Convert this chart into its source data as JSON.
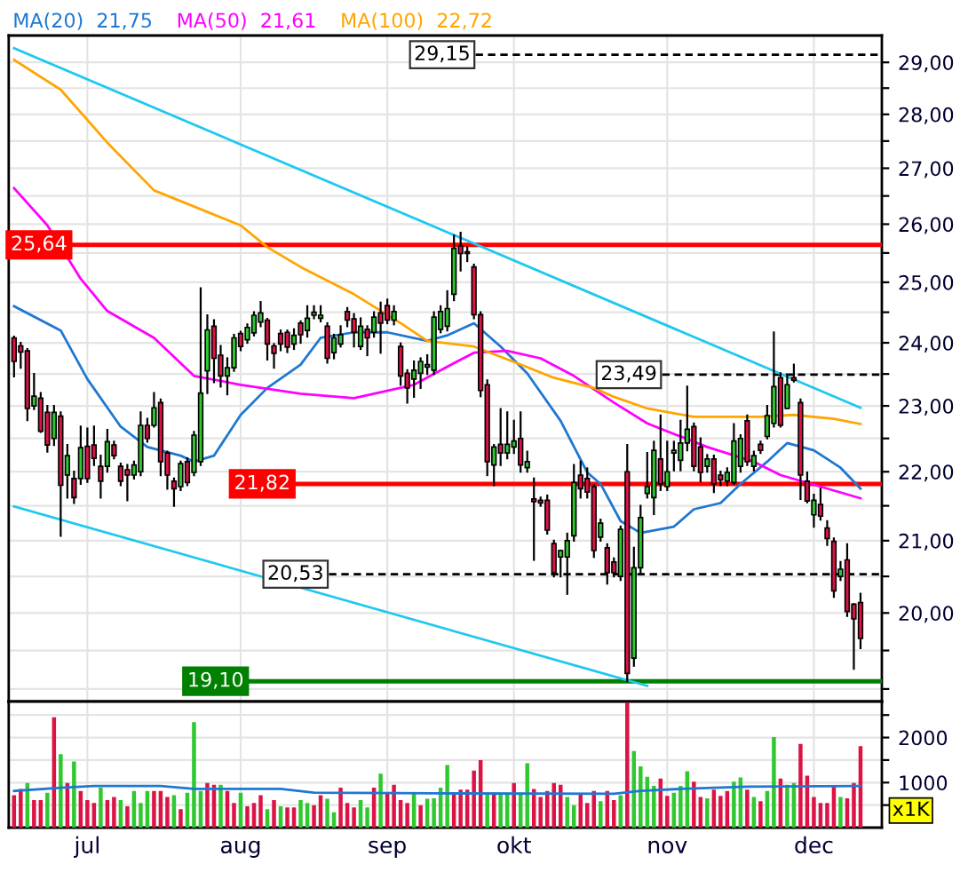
{
  "chart_data": [
    {
      "type": "candlestick",
      "categories": [
        null,
        null,
        null,
        null,
        null,
        null,
        null,
        null,
        null,
        null,
        null,
        null,
        null,
        null,
        null,
        null,
        null,
        null,
        null,
        null,
        null,
        null,
        null,
        null,
        null,
        null,
        null,
        null,
        null,
        null,
        null,
        null,
        null,
        null,
        null,
        null,
        null,
        null,
        null,
        null,
        null,
        null,
        null,
        null,
        null,
        null,
        null,
        null,
        null,
        null,
        null,
        null,
        null,
        null,
        null,
        null,
        null,
        null,
        null,
        null,
        null,
        null,
        null,
        null,
        null,
        null,
        null,
        null,
        null,
        null,
        null,
        null,
        null,
        null,
        null,
        null,
        null,
        null,
        null,
        null,
        null,
        null,
        null,
        null,
        null,
        null,
        null,
        null,
        null,
        null,
        null,
        null,
        null,
        null,
        null,
        null,
        null,
        null,
        null,
        null,
        null,
        null,
        null,
        null,
        null,
        null,
        null,
        null,
        null,
        null,
        null,
        null,
        null,
        null,
        null,
        null,
        null,
        null,
        null,
        null,
        null,
        null,
        null,
        null,
        null,
        null,
        null,
        null
      ],
      "ohlc": [
        [
          24.08,
          24.1,
          23.46,
          23.7
        ],
        [
          23.95,
          24.0,
          23.6,
          23.85
        ],
        [
          23.87,
          23.9,
          22.78,
          22.96
        ],
        [
          23.0,
          23.5,
          22.95,
          23.15
        ],
        [
          23.12,
          23.2,
          22.6,
          22.61
        ],
        [
          22.9,
          23.0,
          22.3,
          22.4
        ],
        [
          22.5,
          23.0,
          22.4,
          22.9
        ],
        [
          22.84,
          22.9,
          21.07,
          21.8
        ],
        [
          21.95,
          22.4,
          21.62,
          22.24
        ],
        [
          21.9,
          22.0,
          21.54,
          21.62
        ],
        [
          21.9,
          22.68,
          21.82,
          22.36
        ],
        [
          22.38,
          22.65,
          21.85,
          21.9
        ],
        [
          22.4,
          22.68,
          22.1,
          22.2
        ],
        [
          22.08,
          22.24,
          21.62,
          21.86
        ],
        [
          22.08,
          22.63,
          22.0,
          22.45
        ],
        [
          22.4,
          22.45,
          22.2,
          22.24
        ],
        [
          22.08,
          22.12,
          21.8,
          21.86
        ],
        [
          22.03,
          22.1,
          21.58,
          21.95
        ],
        [
          21.95,
          22.15,
          21.9,
          22.1
        ],
        [
          22.0,
          22.9,
          21.95,
          22.7
        ],
        [
          22.7,
          22.8,
          22.45,
          22.5
        ],
        [
          22.7,
          23.2,
          22.68,
          22.97
        ],
        [
          23.05,
          23.1,
          21.95,
          22.15
        ],
        [
          22.28,
          22.3,
          21.75,
          21.95
        ],
        [
          21.86,
          21.9,
          21.5,
          21.75
        ],
        [
          21.78,
          22.15,
          21.73,
          22.12
        ],
        [
          22.15,
          22.2,
          21.8,
          21.84
        ],
        [
          21.99,
          22.6,
          21.95,
          22.55
        ],
        [
          22.15,
          24.9,
          22.1,
          23.2
        ],
        [
          23.55,
          24.45,
          23.2,
          24.21
        ],
        [
          24.27,
          24.37,
          23.37,
          23.75
        ],
        [
          23.8,
          23.95,
          23.3,
          23.47
        ],
        [
          23.47,
          23.75,
          23.18,
          23.6
        ],
        [
          23.6,
          24.13,
          23.55,
          24.08
        ],
        [
          24.15,
          24.18,
          23.88,
          23.94
        ],
        [
          24.05,
          24.3,
          24.0,
          24.25
        ],
        [
          24.16,
          24.5,
          24.12,
          24.45
        ],
        [
          24.34,
          24.67,
          24.27,
          24.49
        ],
        [
          24.37,
          24.39,
          23.73,
          23.98
        ],
        [
          23.95,
          23.98,
          23.6,
          23.83
        ],
        [
          24.15,
          24.2,
          23.88,
          23.98
        ],
        [
          24.17,
          24.2,
          23.85,
          23.93
        ],
        [
          23.98,
          24.22,
          23.9,
          24.12
        ],
        [
          24.32,
          24.35,
          24.0,
          24.13
        ],
        [
          24.2,
          24.6,
          24.1,
          24.4
        ],
        [
          24.45,
          24.6,
          24.4,
          24.5
        ],
        [
          24.4,
          24.6,
          24.35,
          24.45
        ],
        [
          24.27,
          24.32,
          23.68,
          23.75
        ],
        [
          23.84,
          24.13,
          23.75,
          24.08
        ],
        [
          23.98,
          24.27,
          23.94,
          24.13
        ],
        [
          24.51,
          24.57,
          24.27,
          24.37
        ],
        [
          24.39,
          24.47,
          23.94,
          24.17
        ],
        [
          23.94,
          24.4,
          23.9,
          24.27
        ],
        [
          24.22,
          24.27,
          23.8,
          24.08
        ],
        [
          24.17,
          24.5,
          24.1,
          24.42
        ],
        [
          24.49,
          24.66,
          23.84,
          24.32
        ],
        [
          24.61,
          24.71,
          24.32,
          24.37
        ],
        [
          24.37,
          24.6,
          24.3,
          24.51
        ],
        [
          23.94,
          23.99,
          23.33,
          23.47
        ],
        [
          23.51,
          23.56,
          23.05,
          23.28
        ],
        [
          23.42,
          23.7,
          23.14,
          23.56
        ],
        [
          23.51,
          23.75,
          23.28,
          23.7
        ],
        [
          23.61,
          23.8,
          23.5,
          23.65
        ],
        [
          23.56,
          24.5,
          23.5,
          24.42
        ],
        [
          24.22,
          24.6,
          24.17,
          24.51
        ],
        [
          24.27,
          24.85,
          24.2,
          24.56
        ],
        [
          24.8,
          25.8,
          24.7,
          25.58
        ],
        [
          25.62,
          25.85,
          25.2,
          25.49
        ],
        [
          25.52,
          25.6,
          25.36,
          25.49
        ],
        [
          25.26,
          25.3,
          24.4,
          24.46
        ],
        [
          24.46,
          24.5,
          23.15,
          23.24
        ],
        [
          23.33,
          23.4,
          21.95,
          22.15
        ],
        [
          22.1,
          22.4,
          21.8,
          22.37
        ],
        [
          22.41,
          22.95,
          22.1,
          22.28
        ],
        [
          22.28,
          22.9,
          22.2,
          22.41
        ],
        [
          22.37,
          22.77,
          22.28,
          22.46
        ],
        [
          22.5,
          22.9,
          22.0,
          22.1
        ],
        [
          22.06,
          22.3,
          22.0,
          22.15
        ],
        [
          21.6,
          21.9,
          20.73,
          21.56
        ],
        [
          21.58,
          21.62,
          21.5,
          21.54
        ],
        [
          21.58,
          21.65,
          21.1,
          21.15
        ],
        [
          20.96,
          21.0,
          20.5,
          20.55
        ],
        [
          20.77,
          20.86,
          20.5,
          20.86
        ],
        [
          20.77,
          21.1,
          20.26,
          21.0
        ],
        [
          21.07,
          22.1,
          21.0,
          21.84
        ],
        [
          21.95,
          22.15,
          21.62,
          21.75
        ],
        [
          21.9,
          22.05,
          21.62,
          21.7
        ],
        [
          21.78,
          21.8,
          20.77,
          20.86
        ],
        [
          21.05,
          21.3,
          21.0,
          21.25
        ],
        [
          20.9,
          20.95,
          20.4,
          20.55
        ],
        [
          20.7,
          20.75,
          20.5,
          20.55
        ],
        [
          20.5,
          21.2,
          20.45,
          21.16
        ],
        [
          22.0,
          22.4,
          19.1,
          19.2
        ],
        [
          19.4,
          20.9,
          19.3,
          20.62
        ],
        [
          20.62,
          21.5,
          20.55,
          21.33
        ],
        [
          21.68,
          22.28,
          21.62,
          21.78
        ],
        [
          21.62,
          22.45,
          21.38,
          22.32
        ],
        [
          22.19,
          22.85,
          21.73,
          21.82
        ],
        [
          21.78,
          22.45,
          21.73,
          22.0
        ],
        [
          22.28,
          22.45,
          22.02,
          22.32
        ],
        [
          22.17,
          22.77,
          22.02,
          22.43
        ],
        [
          22.43,
          23.3,
          22.32,
          22.64
        ],
        [
          22.68,
          22.73,
          22.02,
          22.08
        ],
        [
          22.37,
          22.5,
          21.86,
          21.99
        ],
        [
          22.08,
          22.25,
          22.0,
          22.19
        ],
        [
          22.19,
          22.24,
          21.7,
          21.82
        ],
        [
          21.95,
          22.0,
          21.8,
          21.88
        ],
        [
          21.86,
          22.05,
          21.8,
          21.99
        ],
        [
          21.84,
          22.72,
          21.82,
          22.46
        ],
        [
          22.08,
          22.55,
          22.0,
          22.5
        ],
        [
          22.77,
          22.85,
          22.1,
          22.15
        ],
        [
          22.08,
          22.3,
          22.02,
          22.24
        ],
        [
          22.41,
          22.45,
          22.28,
          22.32
        ],
        [
          22.53,
          23.0,
          22.5,
          22.85
        ],
        [
          22.73,
          24.17,
          22.68,
          23.3
        ],
        [
          23.44,
          23.51,
          22.68,
          22.7
        ],
        [
          22.96,
          23.47,
          22.96,
          23.33
        ],
        [
          23.44,
          23.65,
          23.38,
          23.4
        ],
        [
          23.05,
          23.1,
          21.6,
          21.95
        ],
        [
          21.86,
          21.99,
          21.55,
          21.57
        ],
        [
          21.37,
          21.66,
          21.2,
          21.58
        ],
        [
          21.52,
          21.75,
          21.3,
          21.35
        ],
        [
          21.18,
          21.28,
          20.94,
          21.03
        ],
        [
          20.99,
          21.03,
          20.22,
          20.3
        ],
        [
          20.5,
          20.7,
          20.45,
          20.6
        ],
        [
          20.73,
          20.95,
          19.96,
          20.02
        ],
        [
          20.12,
          20.12,
          19.26,
          19.92
        ],
        [
          20.14,
          20.26,
          19.53,
          19.66
        ]
      ],
      "colors": [
        "#dc1446",
        "#dc1446",
        "#dc1446",
        "#2fc82f",
        "#dc1446",
        "#dc1446",
        "#2fc82f",
        "#dc1446",
        "#2fc82f",
        "#dc1446",
        "#2fc82f",
        "#dc1446",
        "#dc1446",
        "#dc1446",
        "#2fc82f",
        "#dc1446",
        "#dc1446",
        "#dc1446",
        "#2fc82f",
        "#2fc82f",
        "#dc1446",
        "#2fc82f",
        "#dc1446",
        "#dc1446",
        "#dc1446",
        "#2fc82f",
        "#dc1446",
        "#2fc82f",
        "#2fc82f",
        "#2fc82f",
        "#dc1446",
        "#dc1446",
        "#2fc82f",
        "#2fc82f",
        "#dc1446",
        "#2fc82f",
        "#2fc82f",
        "#2fc82f",
        "#dc1446",
        "#dc1446",
        "#dc1446",
        "#dc1446",
        "#2fc82f",
        "#dc1446",
        "#2fc82f",
        "#2fc82f",
        "#2fc82f",
        "#dc1446",
        "#2fc82f",
        "#2fc82f",
        "#dc1446",
        "#dc1446",
        "#2fc82f",
        "#dc1446",
        "#2fc82f",
        "#dc1446",
        "#dc1446",
        "#2fc82f",
        "#dc1446",
        "#dc1446",
        "#2fc82f",
        "#2fc82f",
        "#2fc82f",
        "#2fc82f",
        "#2fc82f",
        "#2fc82f",
        "#2fc82f",
        "#dc1446",
        "#dc1446",
        "#dc1446",
        "#dc1446",
        "#dc1446",
        "#2fc82f",
        "#dc1446",
        "#2fc82f",
        "#2fc82f",
        "#dc1446",
        "#2fc82f",
        "#dc1446",
        "#dc1446",
        "#dc1446",
        "#dc1446",
        "#2fc82f",
        "#2fc82f",
        "#2fc82f",
        "#dc1446",
        "#dc1446",
        "#dc1446",
        "#2fc82f",
        "#dc1446",
        "#dc1446",
        "#2fc82f",
        "#dc1446",
        "#2fc82f",
        "#2fc82f",
        "#2fc82f",
        "#2fc82f",
        "#dc1446",
        "#2fc82f",
        "#2fc82f",
        "#2fc82f",
        "#2fc82f",
        "#dc1446",
        "#dc1446",
        "#2fc82f",
        "#dc1446",
        "#dc1446",
        "#2fc82f",
        "#2fc82f",
        "#2fc82f",
        "#dc1446",
        "#2fc82f",
        "#dc1446",
        "#2fc82f",
        "#2fc82f",
        "#dc1446",
        "#2fc82f",
        "#dc1446",
        "#dc1446",
        "#dc1446",
        "#2fc82f",
        "#dc1446",
        "#dc1446",
        "#dc1446",
        "#2fc82f",
        "#dc1446",
        "#dc1446",
        "#dc1446"
      ],
      "series": [
        {
          "name": "MA(20)  21,75",
          "type": "line",
          "color": "#1e78d2",
          "values": [
            24.6,
            null,
            null,
            null,
            null,
            null,
            null,
            24.2,
            null,
            null,
            null,
            23.42,
            null,
            null,
            null,
            null,
            22.68,
            null,
            null,
            null,
            22.37,
            null,
            null,
            null,
            null,
            22.24,
            null,
            22.15,
            null,
            null,
            22.24,
            null,
            null,
            null,
            22.86,
            null,
            null,
            null,
            23.28,
            null,
            null,
            null,
            null,
            23.65,
            null,
            null,
            24.08,
            null,
            null,
            null,
            null,
            24.17,
            null,
            null,
            null,
            null,
            24.17,
            null,
            null,
            null,
            null,
            null,
            24.03,
            null,
            null,
            24.12,
            null,
            null,
            null,
            24.32,
            null,
            null,
            null,
            23.94,
            null,
            null,
            null,
            23.51,
            null,
            null,
            null,
            null,
            22.77,
            null,
            null,
            null,
            21.99,
            null,
            21.82,
            null,
            null,
            21.28,
            null,
            null,
            21.11,
            null,
            null,
            null,
            null,
            21.2,
            null,
            null,
            21.45,
            null,
            null,
            null,
            21.54,
            null,
            null,
            21.82,
            null,
            null,
            null,
            22.15,
            null,
            null,
            22.43,
            null,
            null,
            null,
            22.32,
            null,
            null,
            null,
            22.06,
            null,
            null,
            21.75
          ]
        },
        {
          "name": "MA(50)  21,61",
          "type": "line",
          "color": "#ff00ff",
          "values": [
            26.64,
            null,
            null,
            null,
            null,
            25.98,
            null,
            null,
            null,
            null,
            25.06,
            null,
            null,
            null,
            24.52,
            null,
            null,
            null,
            null,
            null,
            null,
            24.08,
            null,
            null,
            null,
            null,
            null,
            23.47,
            null,
            null,
            null,
            null,
            null,
            null,
            23.33,
            null,
            null,
            null,
            null,
            null,
            null,
            null,
            null,
            23.19,
            null,
            null,
            null,
            null,
            null,
            null,
            null,
            23.12,
            null,
            null,
            null,
            null,
            null,
            null,
            null,
            null,
            23.33,
            null,
            null,
            null,
            23.56,
            null,
            null,
            null,
            null,
            23.84,
            null,
            null,
            null,
            null,
            23.87,
            null,
            null,
            null,
            null,
            23.75,
            null,
            null,
            null,
            null,
            23.47,
            null,
            null,
            null,
            null,
            null,
            23.05,
            null,
            null,
            null,
            null,
            22.73,
            null,
            null,
            null,
            null,
            null,
            null,
            null,
            null,
            22.37,
            null,
            null,
            null,
            null,
            null,
            null,
            22.15,
            null,
            null,
            null,
            21.95,
            null,
            null,
            null,
            null,
            null,
            21.78,
            null,
            null,
            null,
            null,
            null,
            21.61
          ]
        },
        {
          "name": "MA(100)  22,72",
          "type": "line",
          "color": "#ffa500",
          "values": [
            29.05,
            null,
            null,
            null,
            null,
            null,
            null,
            28.47,
            null,
            null,
            null,
            null,
            null,
            null,
            27.47,
            null,
            null,
            null,
            null,
            null,
            null,
            26.6,
            null,
            null,
            null,
            null,
            null,
            null,
            null,
            null,
            null,
            null,
            null,
            null,
            25.98,
            null,
            null,
            null,
            25.6,
            null,
            null,
            null,
            null,
            25.26,
            null,
            null,
            null,
            null,
            null,
            null,
            null,
            24.8,
            null,
            null,
            null,
            null,
            null,
            null,
            24.32,
            null,
            null,
            null,
            24.03,
            null,
            null,
            null,
            null,
            null,
            null,
            23.94,
            null,
            null,
            null,
            null,
            null,
            null,
            23.65,
            null,
            null,
            null,
            null,
            23.44,
            null,
            null,
            null,
            null,
            null,
            23.28,
            null,
            null,
            23.14,
            null,
            null,
            null,
            null,
            22.96,
            null,
            null,
            null,
            null,
            null,
            null,
            22.83,
            null,
            null,
            null,
            null,
            null,
            null,
            null,
            null,
            null,
            22.83,
            null,
            null,
            null,
            null,
            22.86,
            null,
            null,
            null,
            null,
            null,
            22.8,
            null,
            null,
            null,
            22.72
          ]
        },
        {
          "type": "line",
          "color": "#1ec8f0",
          "values": [
            29.28,
            null,
            null,
            null,
            null,
            null,
            null,
            null,
            null,
            null,
            null,
            null,
            null,
            null,
            null,
            null,
            null,
            null,
            null,
            null,
            null,
            null,
            null,
            null,
            null,
            null,
            null,
            null,
            null,
            null,
            null,
            null,
            null,
            null,
            null,
            null,
            null,
            null,
            null,
            null,
            null,
            null,
            null,
            null,
            null,
            null,
            null,
            null,
            null,
            null,
            null,
            null,
            null,
            null,
            null,
            null,
            null,
            null,
            null,
            null,
            null,
            null,
            null,
            null,
            null,
            null,
            null,
            null,
            null,
            null,
            null,
            null,
            null,
            null,
            null,
            null,
            null,
            null,
            null,
            null,
            null,
            null,
            null,
            null,
            null,
            null,
            null,
            null,
            null,
            null,
            null,
            null,
            null,
            null,
            null,
            null,
            null,
            null,
            null,
            null,
            null,
            null,
            null,
            null,
            null,
            null,
            null,
            null,
            null,
            null,
            null,
            null,
            null,
            null,
            null,
            null,
            null,
            null,
            null,
            null,
            null,
            null,
            null,
            null,
            null,
            null,
            null,
            22.97
          ]
        },
        {
          "type": "line",
          "color": "#1ec8f0",
          "values": [
            21.49,
            null,
            null,
            null,
            null,
            null,
            null,
            null,
            null,
            null,
            null,
            null,
            null,
            null,
            null,
            null,
            null,
            null,
            null,
            null,
            null,
            null,
            null,
            null,
            null,
            null,
            null,
            null,
            null,
            null,
            null,
            null,
            null,
            null,
            null,
            null,
            null,
            null,
            null,
            null,
            null,
            null,
            null,
            null,
            null,
            null,
            null,
            null,
            null,
            null,
            null,
            null,
            null,
            null,
            null,
            null,
            null,
            null,
            null,
            null,
            null,
            null,
            null,
            null,
            null,
            null,
            null,
            null,
            null,
            null,
            null,
            null,
            null,
            null,
            null,
            null,
            null,
            null,
            null,
            null,
            null,
            null,
            null,
            null,
            null,
            null,
            null,
            null,
            null,
            null,
            null,
            null,
            null,
            null,
            null,
            19.04,
            null,
            null,
            null,
            null,
            null,
            null,
            null,
            null,
            null,
            null,
            null,
            null,
            null,
            null,
            null,
            null,
            null,
            null,
            null,
            null,
            null,
            null,
            null,
            null,
            null,
            null,
            null,
            null,
            null,
            null,
            null,
            null
          ]
        }
      ],
      "ref_lines": [
        {
          "axis": "y",
          "value": 29.15,
          "label": "29,15",
          "color": "#000000",
          "line_style": "dashed"
        },
        {
          "axis": "y",
          "value": 25.64,
          "label": "25,64",
          "color": "#ff0000",
          "line_style": "solid"
        },
        {
          "axis": "y",
          "value": 23.49,
          "label": "23,49",
          "color": "#000000",
          "line_style": "dashed"
        },
        {
          "axis": "y",
          "value": 21.82,
          "label": "21,82",
          "color": "#ff0000",
          "line_style": "solid"
        },
        {
          "axis": "y",
          "value": 20.53,
          "label": "20,53",
          "color": "#000000",
          "line_style": "dashed"
        },
        {
          "axis": "y",
          "value": 19.1,
          "label": "19,10",
          "color": "#008000",
          "line_style": "solid"
        }
      ],
      "log": true,
      "ylim": [
        18.84,
        29.53
      ],
      "yticks": [
        {
          "value": 19,
          "label": null
        },
        {
          "value": 19.5,
          "label": null
        },
        {
          "value": 20,
          "label": "20,00"
        },
        {
          "value": 20.5,
          "label": null
        },
        {
          "value": 21,
          "label": "21,00"
        },
        {
          "value": 21.5,
          "label": null
        },
        {
          "value": 22,
          "label": "22,00"
        },
        {
          "value": 22.5,
          "label": null
        },
        {
          "value": 23,
          "label": "23,00"
        },
        {
          "value": 23.5,
          "label": null
        },
        {
          "value": 24,
          "label": "24,00"
        },
        {
          "value": 24.5,
          "label": null
        },
        {
          "value": 25,
          "label": "25,00"
        },
        {
          "value": 25.5,
          "label": null
        },
        {
          "value": 26,
          "label": "26,00"
        },
        {
          "value": 26.5,
          "label": null
        },
        {
          "value": 27,
          "label": "27,00"
        },
        {
          "value": 27.5,
          "label": null
        },
        {
          "value": 28,
          "label": "28,00"
        },
        {
          "value": 28.5,
          "label": null
        },
        {
          "value": 29,
          "label": "29,00"
        }
      ],
      "grid": true,
      "legend": "top left",
      "tick_labels": "y"
    },
    {
      "type": "bar",
      "categories": [
        null,
        null,
        null,
        null,
        null,
        null,
        null,
        null,
        null,
        null,
        null,
        "jul",
        null,
        null,
        null,
        null,
        null,
        null,
        null,
        null,
        null,
        null,
        null,
        null,
        null,
        null,
        null,
        null,
        null,
        null,
        null,
        null,
        null,
        null,
        "aug",
        null,
        null,
        null,
        null,
        null,
        null,
        null,
        null,
        null,
        null,
        null,
        null,
        null,
        null,
        null,
        null,
        null,
        null,
        null,
        null,
        null,
        "sep",
        null,
        null,
        null,
        null,
        null,
        null,
        null,
        null,
        null,
        null,
        null,
        null,
        null,
        null,
        null,
        null,
        null,
        null,
        "okt",
        null,
        null,
        null,
        null,
        null,
        null,
        null,
        null,
        null,
        null,
        null,
        null,
        null,
        null,
        null,
        null,
        null,
        null,
        null,
        null,
        null,
        null,
        "nov",
        null,
        null,
        null,
        null,
        null,
        null,
        null,
        null,
        null,
        null,
        null,
        null,
        null,
        null,
        null,
        null,
        null,
        null,
        null,
        null,
        null,
        "dec",
        null,
        null,
        null,
        null,
        null,
        null,
        null
      ],
      "values": [
        720,
        860,
        990,
        610,
        610,
        775,
        2450,
        1630,
        990,
        1470,
        815,
        610,
        545,
        885,
        610,
        680,
        610,
        475,
        815,
        545,
        815,
        815,
        815,
        680,
        720,
        410,
        775,
        2340,
        815,
        990,
        950,
        950,
        815,
        545,
        775,
        475,
        545,
        720,
        410,
        610,
        475,
        450,
        450,
        610,
        545,
        500,
        720,
        640,
        340,
        885,
        545,
        450,
        610,
        450,
        885,
        1200,
        775,
        950,
        610,
        545,
        790,
        500,
        640,
        650,
        885,
        1390,
        775,
        845,
        845,
        1265,
        1500,
        750,
        775,
        750,
        750,
        990,
        775,
        1430,
        860,
        680,
        815,
        990,
        950,
        680,
        500,
        750,
        545,
        815,
        585,
        815,
        610,
        720,
        2780,
        1700,
        1360,
        1130,
        925,
        1090,
        705,
        775,
        925,
        1250,
        1020,
        680,
        650,
        845,
        705,
        815,
        1020,
        1115,
        845,
        680,
        585,
        815,
        2010,
        1090,
        950,
        990,
        1860,
        1155,
        680,
        545,
        545,
        910,
        680,
        650,
        990,
        1810
      ],
      "colors": [
        "#dc1446",
        "#dc1446",
        "#2fc82f",
        "#dc1446",
        "#dc1446",
        "#2fc82f",
        "#dc1446",
        "#2fc82f",
        "#dc1446",
        "#2fc82f",
        "#dc1446",
        "#dc1446",
        "#dc1446",
        "#2fc82f",
        "#dc1446",
        "#dc1446",
        "#2fc82f",
        "#dc1446",
        "#2fc82f",
        "#2fc82f",
        "#2fc82f",
        "#dc1446",
        "#dc1446",
        "#dc1446",
        "#2fc82f",
        "#dc1446",
        "#2fc82f",
        "#2fc82f",
        "#2fc82f",
        "#dc1446",
        "#dc1446",
        "#2fc82f",
        "#dc1446",
        "#dc1446",
        "#2fc82f",
        "#dc1446",
        "#dc1446",
        "#dc1446",
        "#2fc82f",
        "#dc1446",
        "#2fc82f",
        "#dc1446",
        "#dc1446",
        "#2fc82f",
        "#2fc82f",
        "#dc1446",
        "#dc1446",
        "#2fc82f",
        "#2fc82f",
        "#dc1446",
        "#dc1446",
        "#dc1446",
        "#2fc82f",
        "#2fc82f",
        "#dc1446",
        "#2fc82f",
        "#dc1446",
        "#dc1446",
        "#dc1446",
        "#dc1446",
        "#2fc82f",
        "#dc1446",
        "#2fc82f",
        "#2fc82f",
        "#2fc82f",
        "#2fc82f",
        "#dc1446",
        "#dc1446",
        "#dc1446",
        "#dc1446",
        "#dc1446",
        "#2fc82f",
        "#dc1446",
        "#2fc82f",
        "#2fc82f",
        "#dc1446",
        "#2fc82f",
        "#2fc82f",
        "#dc1446",
        "#dc1446",
        "#dc1446",
        "#dc1446",
        "#dc1446",
        "#2fc82f",
        "#2fc82f",
        "#dc1446",
        "#dc1446",
        "#dc1446",
        "#2fc82f",
        "#dc1446",
        "#dc1446",
        "#2fc82f",
        "#dc1446",
        "#2fc82f",
        "#2fc82f",
        "#2fc82f",
        "#2fc82f",
        "#dc1446",
        "#dc1446",
        "#2fc82f",
        "#2fc82f",
        "#2fc82f",
        "#dc1446",
        "#dc1446",
        "#2fc82f",
        "#dc1446",
        "#dc1446",
        "#dc1446",
        "#2fc82f",
        "#2fc82f",
        "#dc1446",
        "#2fc82f",
        "#dc1446",
        "#2fc82f",
        "#2fc82f",
        "#dc1446",
        "#2fc82f",
        "#2fc82f",
        "#dc1446",
        "#dc1446",
        "#dc1446",
        "#dc1446",
        "#dc1446",
        "#dc1446",
        "#2fc82f",
        "#dc1446",
        "#dc1446",
        "#dc1446"
      ],
      "series": [
        {
          "type": "line",
          "color": "#1e78d2",
          "values": [
            815,
            null,
            null,
            null,
            null,
            null,
            null,
            885,
            null,
            null,
            null,
            null,
            925,
            null,
            null,
            null,
            null,
            null,
            null,
            null,
            null,
            null,
            925,
            null,
            null,
            null,
            null,
            860,
            null,
            null,
            null,
            null,
            null,
            null,
            null,
            null,
            null,
            null,
            null,
            null,
            860,
            null,
            null,
            null,
            null,
            775,
            null,
            null,
            null,
            null,
            null,
            null,
            null,
            null,
            null,
            null,
            null,
            null,
            null,
            null,
            null,
            null,
            null,
            760,
            null,
            null,
            null,
            null,
            null,
            null,
            null,
            null,
            null,
            null,
            null,
            null,
            null,
            null,
            null,
            null,
            null,
            null,
            null,
            null,
            null,
            null,
            null,
            null,
            null,
            null,
            750,
            null,
            null,
            null,
            815,
            null,
            null,
            null,
            null,
            null,
            860,
            null,
            null,
            null,
            null,
            null,
            null,
            null,
            null,
            null,
            910,
            null,
            null,
            null,
            null,
            null,
            null,
            null,
            null,
            null,
            null,
            null,
            null,
            null,
            null,
            null,
            null,
            925
          ]
        }
      ],
      "ylim": [
        0,
        2800
      ],
      "yticks": [
        {
          "value": 500,
          "label": null
        },
        1000,
        {
          "value": 1500,
          "label": null
        },
        2000,
        {
          "value": 2500,
          "label": null
        }
      ],
      "grid": true,
      "annotations": [
        "x1K"
      ]
    }
  ]
}
